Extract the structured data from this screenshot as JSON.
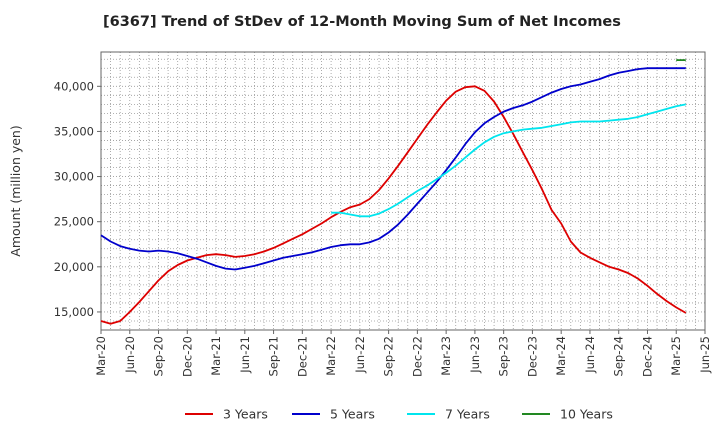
{
  "chart_data": {
    "type": "line",
    "title": "[6367]  Trend of StDev of 12-Month Moving Sum of Net Incomes",
    "xlabel": "",
    "ylabel": "Amount (million yen)",
    "x_ticks": [
      "Mar-20",
      "Jun-20",
      "Sep-20",
      "Dec-20",
      "Mar-21",
      "Jun-21",
      "Sep-21",
      "Dec-21",
      "Mar-22",
      "Jun-22",
      "Sep-22",
      "Dec-22",
      "Mar-23",
      "Jun-23",
      "Sep-23",
      "Dec-23",
      "Mar-24",
      "Jun-24",
      "Sep-24",
      "Dec-24",
      "Mar-25",
      "Jun-25"
    ],
    "y_ticks": [
      15000,
      20000,
      25000,
      30000,
      35000,
      40000
    ],
    "y_tick_labels": [
      "15,000",
      "20,000",
      "25,000",
      "30,000",
      "35,000",
      "40,000"
    ],
    "xlim": [
      "2020-03",
      "2025-06"
    ],
    "ylim": [
      13000,
      43800
    ],
    "grid": true,
    "legend_position": "bottom",
    "series": [
      {
        "name": "3 Years",
        "color": "#dd0000",
        "points": [
          [
            "2020-03",
            14000
          ],
          [
            "2020-04",
            13700
          ],
          [
            "2020-05",
            14000
          ],
          [
            "2020-06",
            15000
          ],
          [
            "2020-07",
            16100
          ],
          [
            "2020-08",
            17300
          ],
          [
            "2020-09",
            18500
          ],
          [
            "2020-10",
            19500
          ],
          [
            "2020-11",
            20200
          ],
          [
            "2020-12",
            20700
          ],
          [
            "2021-01",
            21000
          ],
          [
            "2021-02",
            21300
          ],
          [
            "2021-03",
            21400
          ],
          [
            "2021-04",
            21300
          ],
          [
            "2021-05",
            21100
          ],
          [
            "2021-06",
            21200
          ],
          [
            "2021-07",
            21400
          ],
          [
            "2021-08",
            21700
          ],
          [
            "2021-09",
            22100
          ],
          [
            "2021-10",
            22600
          ],
          [
            "2021-11",
            23100
          ],
          [
            "2021-12",
            23600
          ],
          [
            "2022-01",
            24200
          ],
          [
            "2022-02",
            24800
          ],
          [
            "2022-03",
            25500
          ],
          [
            "2022-04",
            26100
          ],
          [
            "2022-05",
            26600
          ],
          [
            "2022-06",
            26900
          ],
          [
            "2022-07",
            27500
          ],
          [
            "2022-08",
            28500
          ],
          [
            "2022-09",
            29800
          ],
          [
            "2022-10",
            31200
          ],
          [
            "2022-11",
            32700
          ],
          [
            "2022-12",
            34200
          ],
          [
            "2023-01",
            35700
          ],
          [
            "2023-02",
            37100
          ],
          [
            "2023-03",
            38400
          ],
          [
            "2023-04",
            39400
          ],
          [
            "2023-05",
            39900
          ],
          [
            "2023-06",
            40000
          ],
          [
            "2023-07",
            39500
          ],
          [
            "2023-08",
            38300
          ],
          [
            "2023-09",
            36600
          ],
          [
            "2023-10",
            34700
          ],
          [
            "2023-11",
            32700
          ],
          [
            "2023-12",
            30700
          ],
          [
            "2024-01",
            28600
          ],
          [
            "2024-02",
            26300
          ],
          [
            "2024-03",
            24800
          ],
          [
            "2024-04",
            22800
          ],
          [
            "2024-05",
            21600
          ],
          [
            "2024-06",
            21000
          ],
          [
            "2024-07",
            20500
          ],
          [
            "2024-08",
            20000
          ],
          [
            "2024-09",
            19700
          ],
          [
            "2024-10",
            19300
          ],
          [
            "2024-11",
            18700
          ],
          [
            "2024-12",
            17900
          ],
          [
            "2025-01",
            17000
          ],
          [
            "2025-02",
            16200
          ],
          [
            "2025-03",
            15500
          ],
          [
            "2025-04",
            14900
          ]
        ]
      },
      {
        "name": "5 Years",
        "color": "#0000cc",
        "points": [
          [
            "2020-03",
            23500
          ],
          [
            "2020-04",
            22800
          ],
          [
            "2020-05",
            22300
          ],
          [
            "2020-06",
            22000
          ],
          [
            "2020-07",
            21800
          ],
          [
            "2020-08",
            21700
          ],
          [
            "2020-09",
            21800
          ],
          [
            "2020-10",
            21700
          ],
          [
            "2020-11",
            21500
          ],
          [
            "2020-12",
            21200
          ],
          [
            "2021-01",
            20900
          ],
          [
            "2021-02",
            20500
          ],
          [
            "2021-03",
            20100
          ],
          [
            "2021-04",
            19800
          ],
          [
            "2021-05",
            19700
          ],
          [
            "2021-06",
            19900
          ],
          [
            "2021-07",
            20100
          ],
          [
            "2021-08",
            20400
          ],
          [
            "2021-09",
            20700
          ],
          [
            "2021-10",
            21000
          ],
          [
            "2021-11",
            21200
          ],
          [
            "2021-12",
            21400
          ],
          [
            "2022-01",
            21600
          ],
          [
            "2022-02",
            21900
          ],
          [
            "2022-03",
            22200
          ],
          [
            "2022-04",
            22400
          ],
          [
            "2022-05",
            22500
          ],
          [
            "2022-06",
            22500
          ],
          [
            "2022-07",
            22700
          ],
          [
            "2022-08",
            23100
          ],
          [
            "2022-09",
            23800
          ],
          [
            "2022-10",
            24700
          ],
          [
            "2022-11",
            25800
          ],
          [
            "2022-12",
            27000
          ],
          [
            "2023-01",
            28200
          ],
          [
            "2023-02",
            29400
          ],
          [
            "2023-03",
            30700
          ],
          [
            "2023-04",
            32100
          ],
          [
            "2023-05",
            33600
          ],
          [
            "2023-06",
            34900
          ],
          [
            "2023-07",
            35900
          ],
          [
            "2023-08",
            36600
          ],
          [
            "2023-09",
            37200
          ],
          [
            "2023-10",
            37600
          ],
          [
            "2023-11",
            37900
          ],
          [
            "2023-12",
            38300
          ],
          [
            "2024-01",
            38800
          ],
          [
            "2024-02",
            39300
          ],
          [
            "2024-03",
            39700
          ],
          [
            "2024-04",
            40000
          ],
          [
            "2024-05",
            40200
          ],
          [
            "2024-06",
            40500
          ],
          [
            "2024-07",
            40800
          ],
          [
            "2024-08",
            41200
          ],
          [
            "2024-09",
            41500
          ],
          [
            "2024-10",
            41700
          ],
          [
            "2024-11",
            41900
          ],
          [
            "2024-12",
            42000
          ],
          [
            "2025-01",
            42000
          ],
          [
            "2025-02",
            42000
          ],
          [
            "2025-03",
            42000
          ],
          [
            "2025-04",
            42000
          ]
        ]
      },
      {
        "name": "7 Years",
        "color": "#00e5ee",
        "points": [
          [
            "2022-03",
            26000
          ],
          [
            "2022-04",
            26000
          ],
          [
            "2022-05",
            25800
          ],
          [
            "2022-06",
            25600
          ],
          [
            "2022-07",
            25600
          ],
          [
            "2022-08",
            25900
          ],
          [
            "2022-09",
            26400
          ],
          [
            "2022-10",
            27000
          ],
          [
            "2022-11",
            27700
          ],
          [
            "2022-12",
            28400
          ],
          [
            "2023-01",
            29000
          ],
          [
            "2023-02",
            29700
          ],
          [
            "2023-03",
            30400
          ],
          [
            "2023-04",
            31200
          ],
          [
            "2023-05",
            32100
          ],
          [
            "2023-06",
            33000
          ],
          [
            "2023-07",
            33800
          ],
          [
            "2023-08",
            34400
          ],
          [
            "2023-09",
            34800
          ],
          [
            "2023-10",
            35000
          ],
          [
            "2023-11",
            35200
          ],
          [
            "2023-12",
            35300
          ],
          [
            "2024-01",
            35400
          ],
          [
            "2024-02",
            35600
          ],
          [
            "2024-03",
            35800
          ],
          [
            "2024-04",
            36000
          ],
          [
            "2024-05",
            36100
          ],
          [
            "2024-06",
            36100
          ],
          [
            "2024-07",
            36100
          ],
          [
            "2024-08",
            36200
          ],
          [
            "2024-09",
            36300
          ],
          [
            "2024-10",
            36400
          ],
          [
            "2024-11",
            36600
          ],
          [
            "2024-12",
            36900
          ],
          [
            "2025-01",
            37200
          ],
          [
            "2025-02",
            37500
          ],
          [
            "2025-03",
            37800
          ],
          [
            "2025-04",
            38000
          ]
        ]
      },
      {
        "name": "10 Years",
        "color": "#228822",
        "points": [
          [
            "2025-03",
            42900
          ],
          [
            "2025-04",
            42900
          ]
        ]
      }
    ]
  }
}
